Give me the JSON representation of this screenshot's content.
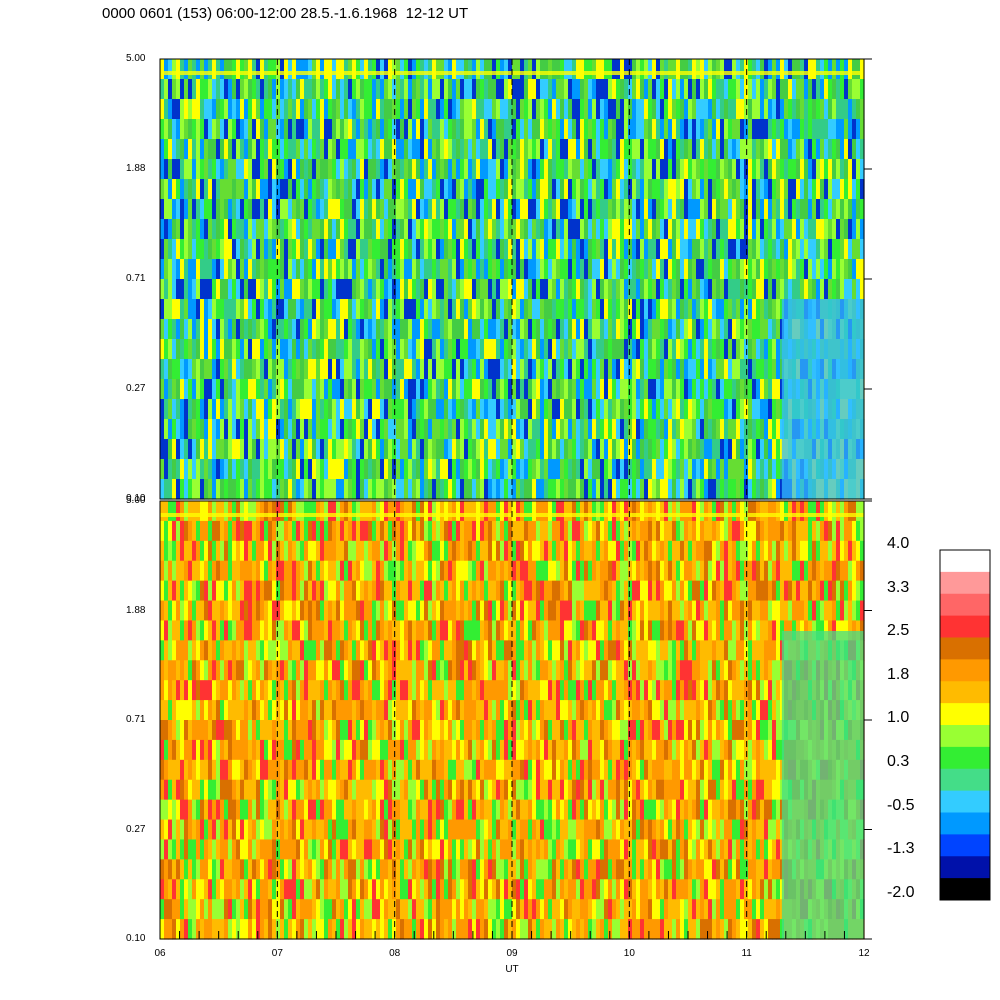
{
  "header": {
    "title": "0000 0601 (153) 06:00-12:00 28.5.-1.6.1968  12-12 UT"
  },
  "chart_data": [
    {
      "type": "heatmap",
      "panel": "top",
      "x_ticks": [
        "06",
        "07",
        "08",
        "09",
        "10",
        "11",
        "12"
      ],
      "y_ticks": [
        "0.10",
        "0.27",
        "0.71",
        "1.88",
        "5.00"
      ],
      "y_scale": "log",
      "ylim": [
        0.1,
        5.0
      ],
      "xlim": [
        6,
        12
      ],
      "dominant_colors": [
        "green",
        "yellow-green",
        "cyan",
        "blue"
      ],
      "vertical_guides_at": [
        7,
        8,
        9,
        10,
        11
      ]
    },
    {
      "type": "heatmap",
      "panel": "bottom",
      "xlabel": "UT",
      "x_ticks": [
        "06",
        "07",
        "08",
        "09",
        "10",
        "11",
        "12"
      ],
      "y_ticks": [
        "0.10",
        "0.27",
        "0.71",
        "1.88",
        "5.00"
      ],
      "y_scale": "log",
      "ylim": [
        0.1,
        5.0
      ],
      "xlim": [
        6,
        12
      ],
      "dominant_colors": [
        "orange",
        "yellow",
        "dark-orange",
        "red",
        "green",
        "cyan"
      ],
      "vertical_guides_at": [
        7,
        8,
        9,
        10,
        11
      ]
    }
  ],
  "colorbar": {
    "labels": [
      "4.0",
      "3.3",
      "2.5",
      "1.8",
      "1.0",
      "0.3",
      "-0.5",
      "-1.3",
      "-2.0"
    ],
    "colors": [
      "#ffffff",
      "#ff9999",
      "#ff6666",
      "#ff3333",
      "#d97000",
      "#ff9900",
      "#ffbb00",
      "#ffff00",
      "#99ff33",
      "#33ee33",
      "#44dd88",
      "#33ccff",
      "#0099ff",
      "#0044ff",
      "#0011aa",
      "#000000"
    ]
  },
  "palette": {
    "top": [
      "#44cc44",
      "#66dd33",
      "#33cc88",
      "#99ff33",
      "#33ccff",
      "#ffff00",
      "#0099ff",
      "#0033cc",
      "#33ee33"
    ],
    "bottom": [
      "#ff9900",
      "#ffbb00",
      "#ffff00",
      "#d97000",
      "#ff9900",
      "#ffbb00",
      "#ff3333",
      "#99ff33",
      "#33ee33"
    ]
  }
}
